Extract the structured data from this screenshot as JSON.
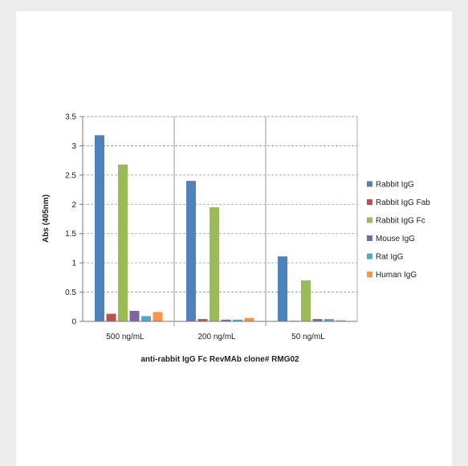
{
  "chart_data": {
    "type": "bar",
    "title": "",
    "xlabel": "anti-rabbit IgG Fc RevMAb clone# RMG02",
    "ylabel": "Abs (405nm)",
    "ylim": [
      0,
      3.5
    ],
    "yticks": [
      "0",
      "0.5",
      "1",
      "1.5",
      "2",
      "2.5",
      "3",
      "3.5"
    ],
    "grid": true,
    "legend_position": "right",
    "categories": [
      "500 ng/mL",
      "200 ng/mL",
      "50 ng/mL"
    ],
    "series": [
      {
        "name": "Rabbit IgG",
        "color": "#4f81bd",
        "values": [
          3.18,
          2.4,
          1.11
        ]
      },
      {
        "name": "Rabbit IgG Fab",
        "color": "#c0504d",
        "values": [
          0.13,
          0.04,
          0.01
        ]
      },
      {
        "name": "Rabbit IgG Fc",
        "color": "#9bbb59",
        "values": [
          2.68,
          1.95,
          0.7
        ]
      },
      {
        "name": "Mouse IgG",
        "color": "#8064a2",
        "values": [
          0.18,
          0.03,
          0.04
        ]
      },
      {
        "name": "Rat IgG",
        "color": "#4bacc6",
        "values": [
          0.09,
          0.03,
          0.04
        ]
      },
      {
        "name": "Human IgG",
        "color": "#f79646",
        "values": [
          0.16,
          0.06,
          0.02
        ]
      }
    ]
  }
}
